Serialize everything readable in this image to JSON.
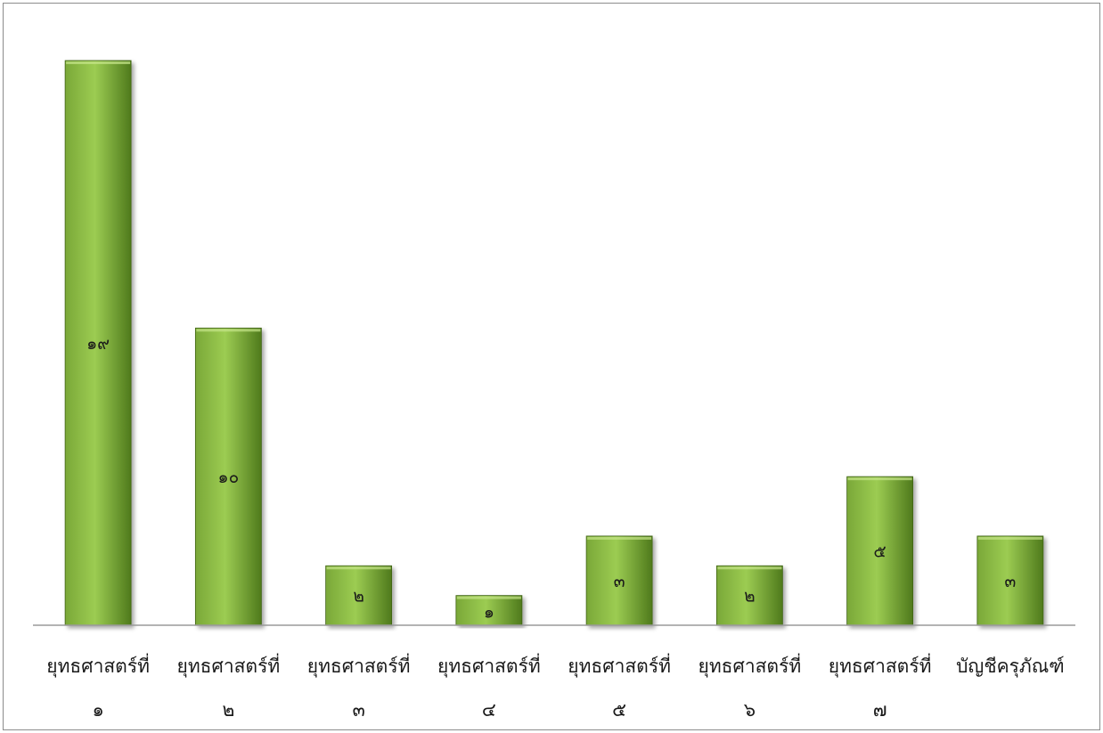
{
  "chart_data": {
    "type": "bar",
    "categories": [
      [
        "ยุทธศาสตร์ที่",
        "๑"
      ],
      [
        "ยุทธศาสตร์ที่",
        "๒"
      ],
      [
        "ยุทธศาสตร์ที่",
        "๓"
      ],
      [
        "ยุทธศาสตร์ที่",
        "๔"
      ],
      [
        "ยุทธศาสตร์ที่",
        "๕"
      ],
      [
        "ยุทธศาสตร์ที่",
        "๖"
      ],
      [
        "ยุทธศาสตร์ที่",
        "๗"
      ],
      [
        "บัญชีครุภัณฑ์"
      ]
    ],
    "values": [
      19,
      10,
      2,
      1,
      3,
      2,
      5,
      3
    ],
    "data_labels": [
      "๑๙",
      "๑๐",
      "๒",
      "๑",
      "๓",
      "๒",
      "๕",
      "๓"
    ],
    "title": "",
    "xlabel": "",
    "ylabel": "",
    "ylim": [
      0,
      19
    ],
    "grid": false,
    "legend": "none",
    "colors": {
      "bar_light": "#9ccc52",
      "bar_mid": "#7aa838",
      "bar_dark": "#4f7a1c",
      "bar_edge": "#3f6414",
      "axis": "#9a9a9a",
      "frame": "#8c8c8c"
    }
  }
}
